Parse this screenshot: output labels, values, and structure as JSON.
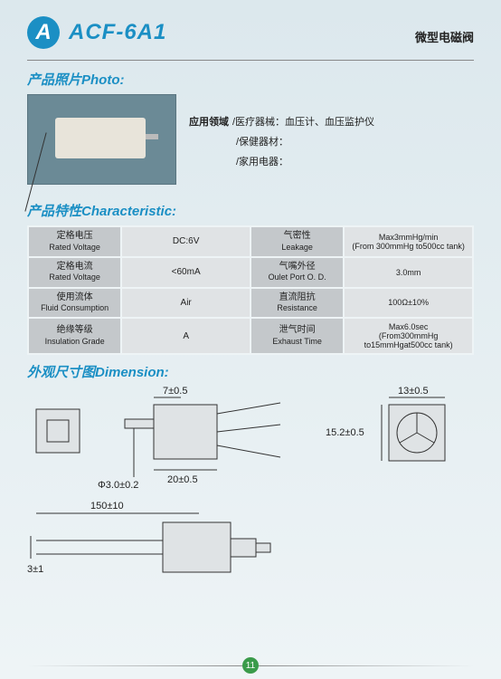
{
  "header": {
    "badge": "A",
    "model": "ACF-6A1",
    "category": "微型电磁阀"
  },
  "sections": {
    "photo": "产品照片Photo:",
    "characteristic": "产品特性Characteristic:",
    "dimension": "外观尺寸图Dimension:"
  },
  "application": {
    "label": "应用领域",
    "lines": [
      "/医疗器械：血压计、血压监护仪",
      "/保健器材：",
      "/家用电器："
    ]
  },
  "char_rows": [
    {
      "l1cn": "定格电压",
      "l1en": "Rated Voltage",
      "v1": "DC:6V",
      "l2cn": "气密性",
      "l2en": "Leakage",
      "v2": "Max3mmHg/min\n(From 300mmHg to500cc tank)"
    },
    {
      "l1cn": "定格电流",
      "l1en": "Rated Voltage",
      "v1": "<60mA",
      "l2cn": "气嘴外径",
      "l2en": "Oulet Port O. D.",
      "v2": "3.0mm"
    },
    {
      "l1cn": "使用流体",
      "l1en": "Fluid Consumption",
      "v1": "Air",
      "l2cn": "直流阻抗",
      "l2en": "Resistance",
      "v2": "100Ω±10%"
    },
    {
      "l1cn": "绝缘等级",
      "l1en": "Insulation Grade",
      "v1": "A",
      "l2cn": "泄气时间",
      "l2en": "Exhaust Time",
      "v2": "Max6.0sec\n(From300mmHg to15mmHgat500cc tank)"
    }
  ],
  "dimensions": {
    "d1": "7±0.5",
    "d2": "13±0.5",
    "d3": "15.2±0.5",
    "d4": "Φ3.0±0.2",
    "d5": "20±0.5",
    "d6": "150±10",
    "d7": "3±1"
  },
  "page": "11",
  "colors": {
    "accent": "#1b8fc4",
    "table_head": "#c4c8cb",
    "table_cell": "#e0e3e5",
    "bg_top": "#dce8ed",
    "bg_bot": "#eef4f6",
    "page_badge": "#3a9b4a"
  }
}
